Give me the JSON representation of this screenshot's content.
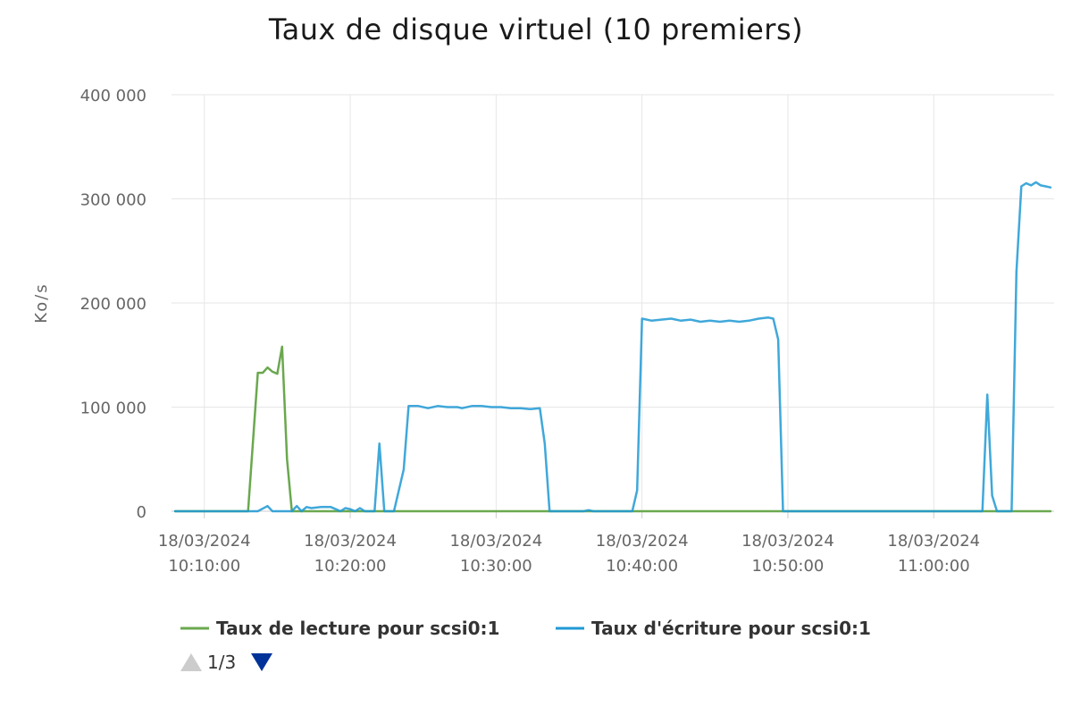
{
  "chart_data": {
    "type": "line",
    "title": "Taux de disque virtuel (10 premiers)",
    "xlabel": "",
    "ylabel": "Ko/s",
    "ylim": [
      0,
      400000
    ],
    "yticks": [
      0,
      100000,
      200000,
      300000,
      400000
    ],
    "ytick_labels": [
      "0",
      "100 000",
      "200 000",
      "300 000",
      "400 000"
    ],
    "xlim": [
      "18/03/2024 10:07:45",
      "18/03/2024 11:08:15"
    ],
    "xticks": [
      {
        "time": "18/03/2024 10:10:00",
        "line1": "18/03/2024",
        "line2": "10:10:00"
      },
      {
        "time": "18/03/2024 10:20:00",
        "line1": "18/03/2024",
        "line2": "10:20:00"
      },
      {
        "time": "18/03/2024 10:30:00",
        "line1": "18/03/2024",
        "line2": "10:30:00"
      },
      {
        "time": "18/03/2024 10:40:00",
        "line1": "18/03/2024",
        "line2": "10:40:00"
      },
      {
        "time": "18/03/2024 10:50:00",
        "line1": "18/03/2024",
        "line2": "10:50:00"
      },
      {
        "time": "18/03/2024 11:00:00",
        "line1": "18/03/2024",
        "line2": "11:00:00"
      }
    ],
    "grid": true,
    "legend_position": "bottom-left",
    "series": [
      {
        "name": "Taux de lecture pour scsi0:1",
        "color": "#6aa84f",
        "points": [
          [
            "18/03/2024 10:08:00",
            0
          ],
          [
            "18/03/2024 10:12:30",
            0
          ],
          [
            "18/03/2024 10:13:00",
            0
          ],
          [
            "18/03/2024 10:13:40",
            133000
          ],
          [
            "18/03/2024 10:14:00",
            133000
          ],
          [
            "18/03/2024 10:14:20",
            138000
          ],
          [
            "18/03/2024 10:14:40",
            134000
          ],
          [
            "18/03/2024 10:15:00",
            132000
          ],
          [
            "18/03/2024 10:15:20",
            158000
          ],
          [
            "18/03/2024 10:15:40",
            50000
          ],
          [
            "18/03/2024 10:16:00",
            0
          ],
          [
            "18/03/2024 10:16:20",
            0
          ],
          [
            "18/03/2024 10:20:00",
            0
          ],
          [
            "18/03/2024 10:30:00",
            0
          ],
          [
            "18/03/2024 10:40:00",
            0
          ],
          [
            "18/03/2024 10:50:00",
            0
          ],
          [
            "18/03/2024 11:00:00",
            0
          ],
          [
            "18/03/2024 11:08:00",
            0
          ]
        ]
      },
      {
        "name": "Taux d'écriture pour scsi0:1",
        "color": "#1f99d4",
        "points": [
          [
            "18/03/2024 10:08:00",
            0
          ],
          [
            "18/03/2024 10:10:00",
            0
          ],
          [
            "18/03/2024 10:13:00",
            0
          ],
          [
            "18/03/2024 10:13:40",
            0
          ],
          [
            "18/03/2024 10:14:20",
            5000
          ],
          [
            "18/03/2024 10:14:40",
            0
          ],
          [
            "18/03/2024 10:15:20",
            0
          ],
          [
            "18/03/2024 10:16:00",
            0
          ],
          [
            "18/03/2024 10:16:20",
            5000
          ],
          [
            "18/03/2024 10:16:40",
            0
          ],
          [
            "18/03/2024 10:17:00",
            4000
          ],
          [
            "18/03/2024 10:17:20",
            3000
          ],
          [
            "18/03/2024 10:18:00",
            4000
          ],
          [
            "18/03/2024 10:18:40",
            4000
          ],
          [
            "18/03/2024 10:19:20",
            0
          ],
          [
            "18/03/2024 10:19:40",
            3000
          ],
          [
            "18/03/2024 10:20:00",
            2000
          ],
          [
            "18/03/2024 10:20:20",
            0
          ],
          [
            "18/03/2024 10:20:40",
            3000
          ],
          [
            "18/03/2024 10:21:00",
            0
          ],
          [
            "18/03/2024 10:21:40",
            0
          ],
          [
            "18/03/2024 10:22:00",
            65000
          ],
          [
            "18/03/2024 10:22:20",
            0
          ],
          [
            "18/03/2024 10:23:00",
            0
          ],
          [
            "18/03/2024 10:23:40",
            40000
          ],
          [
            "18/03/2024 10:24:00",
            101000
          ],
          [
            "18/03/2024 10:24:40",
            101000
          ],
          [
            "18/03/2024 10:25:20",
            99000
          ],
          [
            "18/03/2024 10:26:00",
            101000
          ],
          [
            "18/03/2024 10:26:40",
            100000
          ],
          [
            "18/03/2024 10:27:20",
            100000
          ],
          [
            "18/03/2024 10:27:40",
            99000
          ],
          [
            "18/03/2024 10:28:20",
            101000
          ],
          [
            "18/03/2024 10:29:00",
            101000
          ],
          [
            "18/03/2024 10:29:40",
            100000
          ],
          [
            "18/03/2024 10:30:20",
            100000
          ],
          [
            "18/03/2024 10:31:00",
            99000
          ],
          [
            "18/03/2024 10:31:40",
            99000
          ],
          [
            "18/03/2024 10:32:20",
            98000
          ],
          [
            "18/03/2024 10:33:00",
            99000
          ],
          [
            "18/03/2024 10:33:20",
            65000
          ],
          [
            "18/03/2024 10:33:40",
            0
          ],
          [
            "18/03/2024 10:36:00",
            0
          ],
          [
            "18/03/2024 10:36:20",
            1000
          ],
          [
            "18/03/2024 10:36:40",
            0
          ],
          [
            "18/03/2024 10:39:20",
            0
          ],
          [
            "18/03/2024 10:39:40",
            20000
          ],
          [
            "18/03/2024 10:40:00",
            185000
          ],
          [
            "18/03/2024 10:40:40",
            183000
          ],
          [
            "18/03/2024 10:41:20",
            184000
          ],
          [
            "18/03/2024 10:42:00",
            185000
          ],
          [
            "18/03/2024 10:42:40",
            183000
          ],
          [
            "18/03/2024 10:43:20",
            184000
          ],
          [
            "18/03/2024 10:44:00",
            182000
          ],
          [
            "18/03/2024 10:44:40",
            183000
          ],
          [
            "18/03/2024 10:45:20",
            182000
          ],
          [
            "18/03/2024 10:46:00",
            183000
          ],
          [
            "18/03/2024 10:46:40",
            182000
          ],
          [
            "18/03/2024 10:47:20",
            183000
          ],
          [
            "18/03/2024 10:48:00",
            185000
          ],
          [
            "18/03/2024 10:48:40",
            186000
          ],
          [
            "18/03/2024 10:49:00",
            185000
          ],
          [
            "18/03/2024 10:49:20",
            165000
          ],
          [
            "18/03/2024 10:49:40",
            0
          ],
          [
            "18/03/2024 10:55:00",
            0
          ],
          [
            "18/03/2024 11:03:20",
            0
          ],
          [
            "18/03/2024 11:03:40",
            112000
          ],
          [
            "18/03/2024 11:04:00",
            15000
          ],
          [
            "18/03/2024 11:04:20",
            0
          ],
          [
            "18/03/2024 11:05:20",
            0
          ],
          [
            "18/03/2024 11:05:40",
            230000
          ],
          [
            "18/03/2024 11:06:00",
            312000
          ],
          [
            "18/03/2024 11:06:20",
            315000
          ],
          [
            "18/03/2024 11:06:40",
            313000
          ],
          [
            "18/03/2024 11:07:00",
            316000
          ],
          [
            "18/03/2024 11:07:20",
            313000
          ],
          [
            "18/03/2024 11:07:40",
            312000
          ],
          [
            "18/03/2024 11:08:00",
            311000
          ]
        ]
      }
    ],
    "pager": {
      "text": "1/3",
      "up_color": "#cccccc",
      "down_color": "#003399"
    }
  }
}
